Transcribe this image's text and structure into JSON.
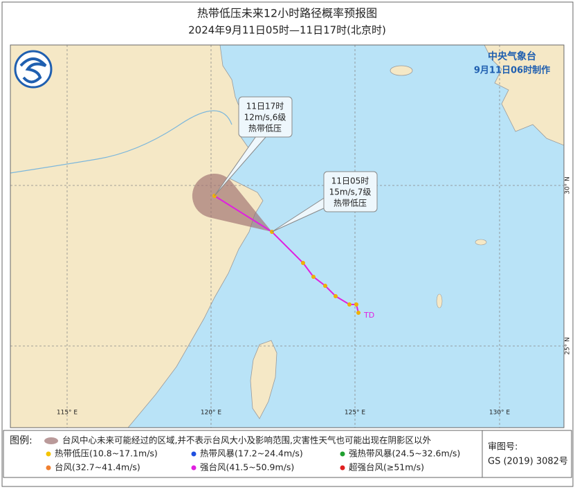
{
  "header": {
    "title": "热带低压未来12小时路径概率预报图",
    "subtitle": "2024年9月11日05时—11日17时(北京时)"
  },
  "map": {
    "agency": "中央气象台",
    "issued": "9月11日06时制作",
    "lon_labels": [
      "115° E",
      "120° E",
      "125° E",
      "130° E"
    ],
    "lat_labels": [
      "30° N",
      "25° N"
    ],
    "callouts": [
      {
        "time": "11日17时",
        "wind": "12m/s,6级",
        "level": "热带低压"
      },
      {
        "time": "11日05时",
        "wind": "15m/s,7级",
        "level": "热带低压"
      }
    ],
    "storm_label": "TD"
  },
  "legend": {
    "title": "图例:",
    "cone": "台风中心未来可能经过的区域,并不表示台风大小及影响范围,灾害性天气也可能出现在阴影区以外",
    "items": [
      {
        "label": "热带低压(10.8~17.1m/s)",
        "color": "#f5c400"
      },
      {
        "label": "热带风暴(17.2~24.4m/s)",
        "color": "#2050e0"
      },
      {
        "label": "强热带风暴(24.5~32.6m/s)",
        "color": "#20a030"
      },
      {
        "label": "台风(32.7~41.4m/s)",
        "color": "#f08030"
      },
      {
        "label": "强台风(41.5~50.9m/s)",
        "color": "#e020e0"
      },
      {
        "label": "超强台风(≥51m/s)",
        "color": "#e02020"
      }
    ]
  },
  "approval": {
    "label": "审图号:",
    "number": "GS (2019) 3082号"
  }
}
